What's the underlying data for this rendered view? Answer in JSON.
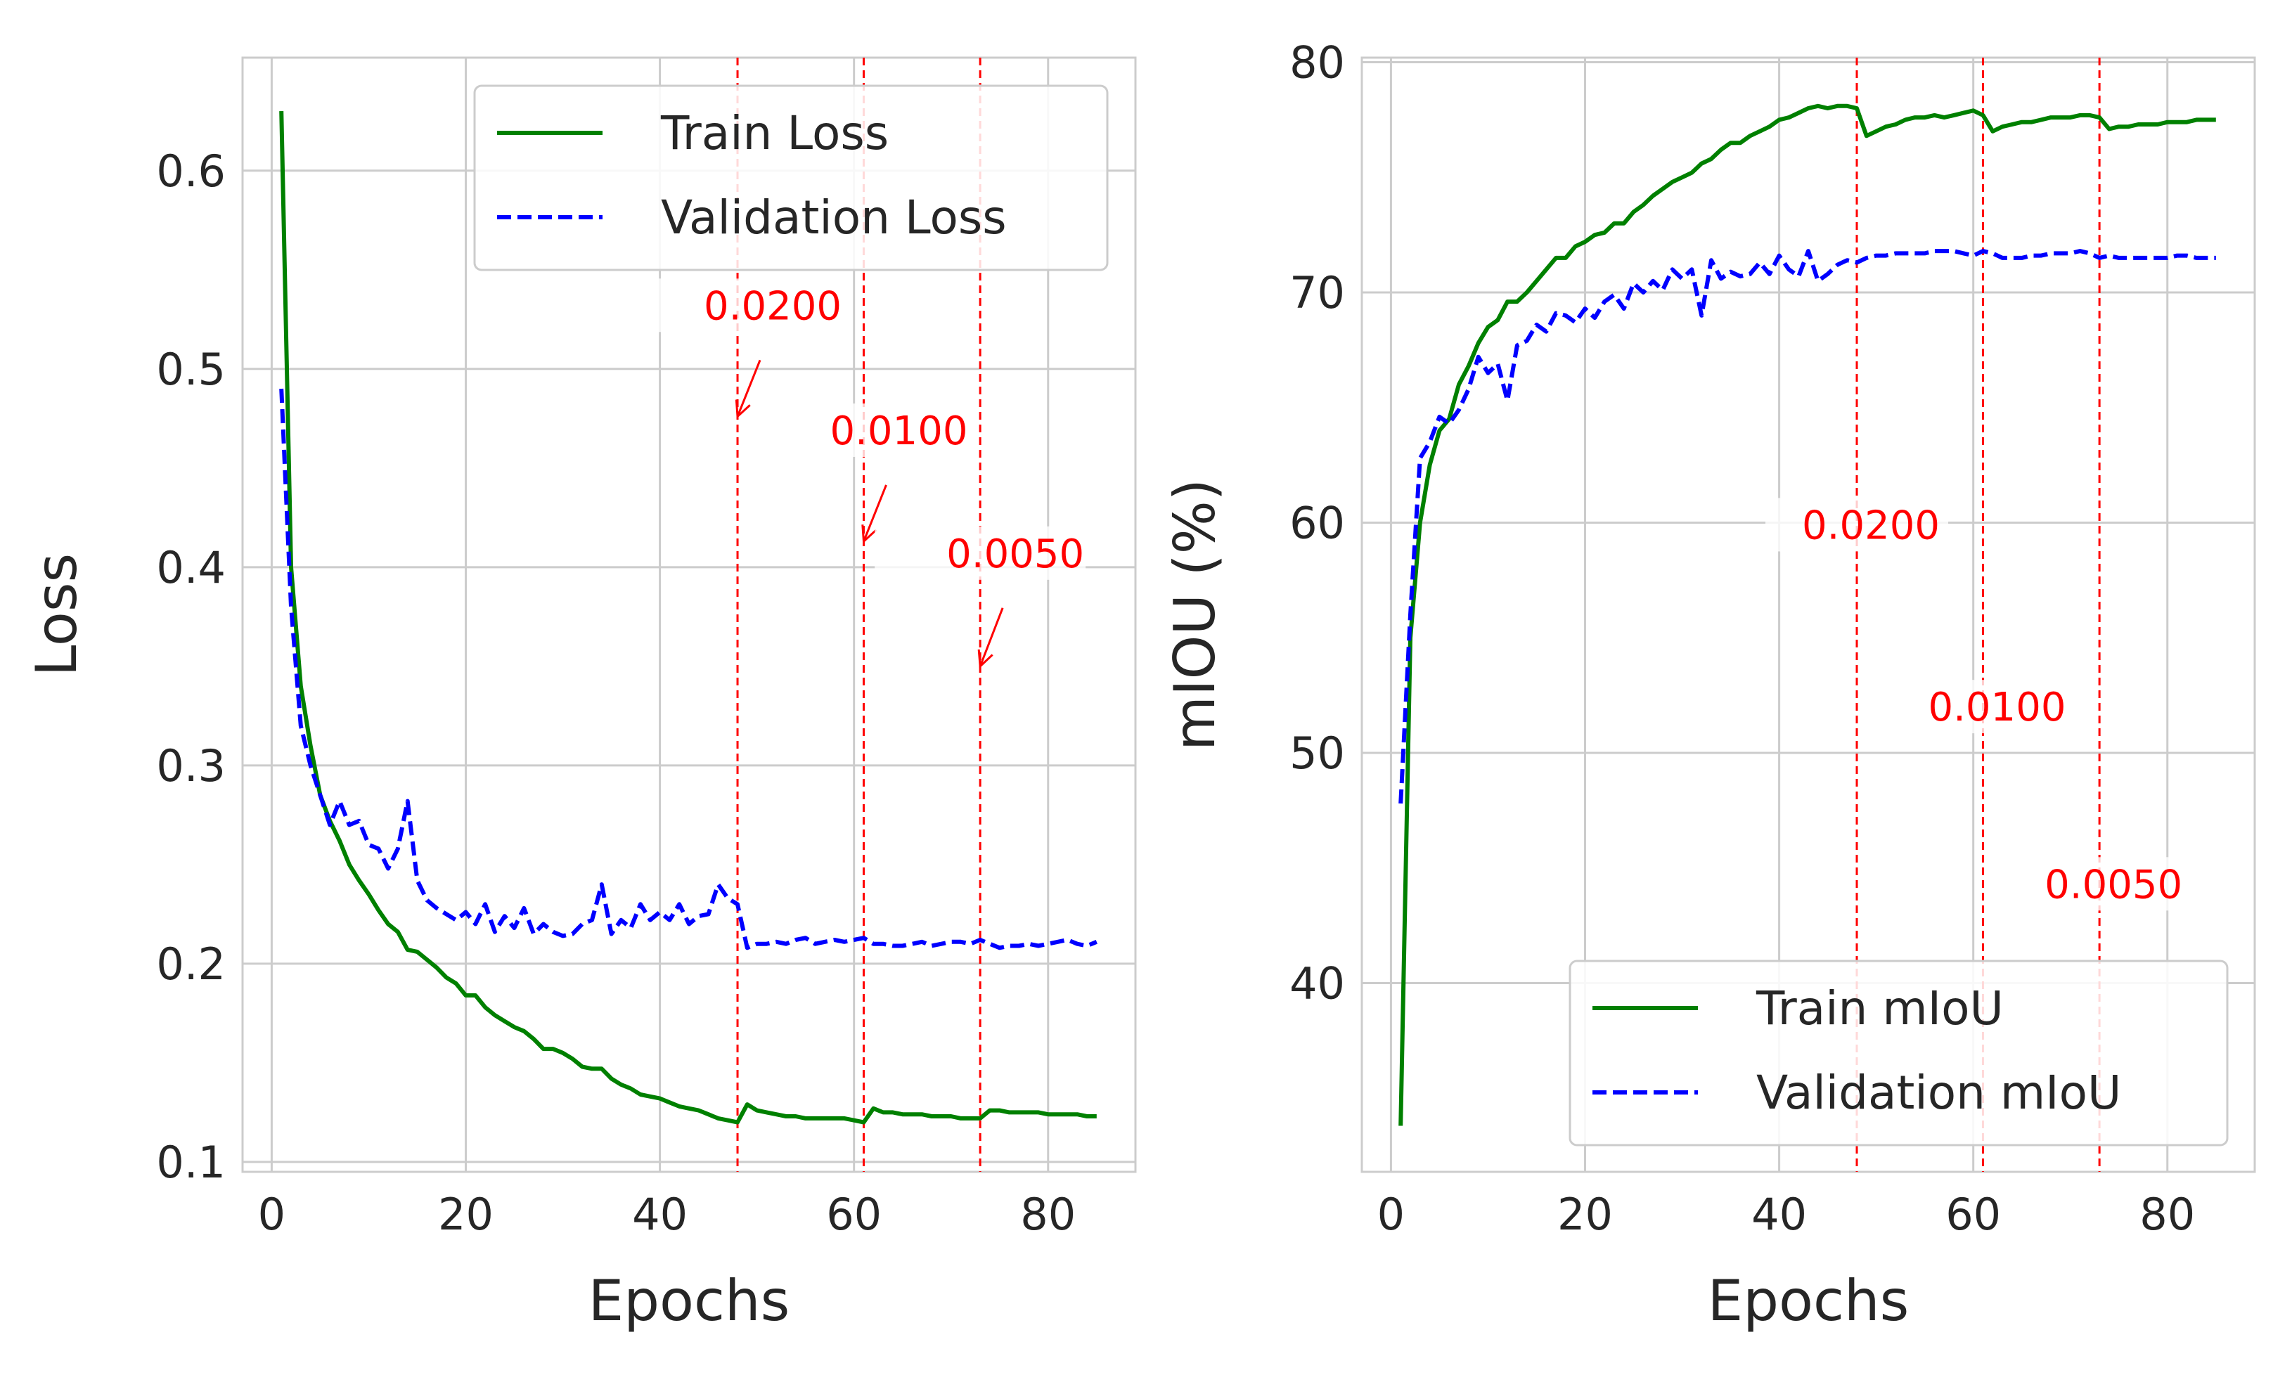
{
  "chart_data": [
    {
      "type": "line",
      "xlabel": "Epochs",
      "ylabel": "Loss",
      "xlim": [
        -3,
        89
      ],
      "ylim": [
        0.095,
        0.657
      ],
      "xticks": [
        "0",
        "20",
        "40",
        "60",
        "80"
      ],
      "yticks": [
        "0.1",
        "0.2",
        "0.3",
        "0.4",
        "0.5",
        "0.6"
      ],
      "grid": true,
      "legend_position": "upper right",
      "lr_markers": [
        {
          "epoch": 48,
          "label": "0.0200",
          "arrow_tip": 0.476,
          "label_at": 0.525
        },
        {
          "epoch": 61,
          "label": "0.0100",
          "arrow_tip": 0.413,
          "label_at": 0.462
        },
        {
          "epoch": 73,
          "label": "0.0050",
          "arrow_tip": 0.35,
          "label_at": 0.4
        }
      ],
      "series": [
        {
          "name": "Train Loss",
          "color": "#008000",
          "style": "solid",
          "x": [
            1,
            2,
            3,
            4,
            5,
            6,
            7,
            8,
            9,
            10,
            11,
            12,
            13,
            14,
            15,
            16,
            17,
            18,
            19,
            20,
            21,
            22,
            23,
            24,
            25,
            26,
            27,
            28,
            29,
            30,
            31,
            32,
            33,
            34,
            35,
            36,
            37,
            38,
            39,
            40,
            41,
            42,
            43,
            44,
            45,
            46,
            47,
            48,
            49,
            50,
            51,
            52,
            53,
            54,
            55,
            56,
            57,
            58,
            59,
            60,
            61,
            62,
            63,
            64,
            65,
            66,
            67,
            68,
            69,
            70,
            71,
            72,
            73,
            74,
            75,
            76,
            77,
            78,
            79,
            80,
            81,
            82,
            83,
            84,
            85
          ],
          "y": [
            0.63,
            0.4,
            0.34,
            0.31,
            0.285,
            0.272,
            0.262,
            0.25,
            0.242,
            0.235,
            0.227,
            0.22,
            0.216,
            0.207,
            0.206,
            0.202,
            0.198,
            0.193,
            0.19,
            0.184,
            0.184,
            0.178,
            0.174,
            0.171,
            0.168,
            0.166,
            0.162,
            0.157,
            0.157,
            0.155,
            0.152,
            0.148,
            0.147,
            0.147,
            0.142,
            0.139,
            0.137,
            0.134,
            0.133,
            0.132,
            0.13,
            0.128,
            0.127,
            0.126,
            0.124,
            0.122,
            0.121,
            0.12,
            0.129,
            0.126,
            0.125,
            0.124,
            0.123,
            0.123,
            0.122,
            0.122,
            0.122,
            0.122,
            0.122,
            0.121,
            0.12,
            0.127,
            0.125,
            0.125,
            0.124,
            0.124,
            0.124,
            0.123,
            0.123,
            0.123,
            0.122,
            0.122,
            0.122,
            0.126,
            0.126,
            0.125,
            0.125,
            0.125,
            0.125,
            0.124,
            0.124,
            0.124,
            0.124,
            0.123,
            0.123
          ]
        },
        {
          "name": "Validation Loss",
          "color": "#0000ff",
          "style": "dashed",
          "x": [
            1,
            2,
            3,
            4,
            5,
            6,
            7,
            8,
            9,
            10,
            11,
            12,
            13,
            14,
            15,
            16,
            17,
            18,
            19,
            20,
            21,
            22,
            23,
            24,
            25,
            26,
            27,
            28,
            29,
            30,
            31,
            32,
            33,
            34,
            35,
            36,
            37,
            38,
            39,
            40,
            41,
            42,
            43,
            44,
            45,
            46,
            47,
            48,
            49,
            50,
            51,
            52,
            53,
            54,
            55,
            56,
            57,
            58,
            59,
            60,
            61,
            62,
            63,
            64,
            65,
            66,
            67,
            68,
            69,
            70,
            71,
            72,
            73,
            74,
            75,
            76,
            77,
            78,
            79,
            80,
            81,
            82,
            83,
            84,
            85
          ],
          "y": [
            0.49,
            0.38,
            0.32,
            0.3,
            0.285,
            0.27,
            0.282,
            0.27,
            0.272,
            0.26,
            0.258,
            0.248,
            0.258,
            0.282,
            0.242,
            0.232,
            0.228,
            0.225,
            0.222,
            0.226,
            0.22,
            0.23,
            0.216,
            0.224,
            0.218,
            0.228,
            0.215,
            0.22,
            0.216,
            0.214,
            0.215,
            0.22,
            0.222,
            0.24,
            0.215,
            0.222,
            0.218,
            0.23,
            0.222,
            0.226,
            0.222,
            0.23,
            0.22,
            0.224,
            0.225,
            0.24,
            0.233,
            0.23,
            0.208,
            0.21,
            0.21,
            0.211,
            0.21,
            0.212,
            0.213,
            0.21,
            0.211,
            0.212,
            0.211,
            0.212,
            0.213,
            0.21,
            0.21,
            0.209,
            0.209,
            0.21,
            0.211,
            0.209,
            0.21,
            0.211,
            0.211,
            0.21,
            0.212,
            0.21,
            0.208,
            0.209,
            0.209,
            0.21,
            0.209,
            0.21,
            0.211,
            0.212,
            0.21,
            0.209,
            0.211
          ]
        }
      ]
    },
    {
      "type": "line",
      "xlabel": "Epochs",
      "ylabel": "mIOU (%)",
      "xlim": [
        -3,
        89
      ],
      "ylim": [
        31.8,
        80.2
      ],
      "xticks": [
        "0",
        "20",
        "40",
        "60",
        "80"
      ],
      "yticks": [
        "40",
        "50",
        "60",
        "70",
        "80"
      ],
      "grid": true,
      "legend_position": "lower right",
      "lr_markers": [
        {
          "epoch": 48,
          "label": "0.0200",
          "label_at": 59.3
        },
        {
          "epoch": 61,
          "label": "0.0100",
          "label_at": 51.4
        },
        {
          "epoch": 73,
          "label": "0.0050",
          "label_at": 43.7
        }
      ],
      "series": [
        {
          "name": "Train mIoU",
          "color": "#008000",
          "style": "solid",
          "x": [
            1,
            2,
            3,
            4,
            5,
            6,
            7,
            8,
            9,
            10,
            11,
            12,
            13,
            14,
            15,
            16,
            17,
            18,
            19,
            20,
            21,
            22,
            23,
            24,
            25,
            26,
            27,
            28,
            29,
            30,
            31,
            32,
            33,
            34,
            35,
            36,
            37,
            38,
            39,
            40,
            41,
            42,
            43,
            44,
            45,
            46,
            47,
            48,
            49,
            50,
            51,
            52,
            53,
            54,
            55,
            56,
            57,
            58,
            59,
            60,
            61,
            62,
            63,
            64,
            65,
            66,
            67,
            68,
            69,
            70,
            71,
            72,
            73,
            74,
            75,
            76,
            77,
            78,
            79,
            80,
            81,
            82,
            83,
            84,
            85
          ],
          "y": [
            33.8,
            55.0,
            60.0,
            62.5,
            64.0,
            64.5,
            66.0,
            66.8,
            67.8,
            68.5,
            68.8,
            69.6,
            69.6,
            70.0,
            70.5,
            71.0,
            71.5,
            71.5,
            72.0,
            72.2,
            72.5,
            72.6,
            73.0,
            73.0,
            73.5,
            73.8,
            74.2,
            74.5,
            74.8,
            75.0,
            75.2,
            75.6,
            75.8,
            76.2,
            76.5,
            76.5,
            76.8,
            77.0,
            77.2,
            77.5,
            77.6,
            77.8,
            78.0,
            78.1,
            78.0,
            78.1,
            78.1,
            78.0,
            76.8,
            77.0,
            77.2,
            77.3,
            77.5,
            77.6,
            77.6,
            77.7,
            77.6,
            77.7,
            77.8,
            77.9,
            77.7,
            77.0,
            77.2,
            77.3,
            77.4,
            77.4,
            77.5,
            77.6,
            77.6,
            77.6,
            77.7,
            77.7,
            77.6,
            77.1,
            77.2,
            77.2,
            77.3,
            77.3,
            77.3,
            77.4,
            77.4,
            77.4,
            77.5,
            77.5,
            77.5
          ]
        },
        {
          "name": "Validation mIoU",
          "color": "#0000ff",
          "style": "dashed",
          "x": [
            1,
            2,
            3,
            4,
            5,
            6,
            7,
            8,
            9,
            10,
            11,
            12,
            13,
            14,
            15,
            16,
            17,
            18,
            19,
            20,
            21,
            22,
            23,
            24,
            25,
            26,
            27,
            28,
            29,
            30,
            31,
            32,
            33,
            34,
            35,
            36,
            37,
            38,
            39,
            40,
            41,
            42,
            43,
            44,
            45,
            46,
            47,
            48,
            49,
            50,
            51,
            52,
            53,
            54,
            55,
            56,
            57,
            58,
            59,
            60,
            61,
            62,
            63,
            64,
            65,
            66,
            67,
            68,
            69,
            70,
            71,
            72,
            73,
            74,
            75,
            76,
            77,
            78,
            79,
            80,
            81,
            82,
            83,
            84,
            85
          ],
          "y": [
            47.8,
            56.0,
            62.8,
            63.5,
            64.6,
            64.3,
            64.9,
            65.8,
            67.2,
            66.5,
            66.9,
            65.3,
            67.7,
            67.9,
            68.6,
            68.3,
            69.1,
            69.0,
            68.7,
            69.3,
            68.9,
            69.6,
            69.9,
            69.3,
            70.4,
            70.0,
            70.5,
            70.1,
            71.0,
            70.6,
            71.0,
            69.0,
            71.4,
            70.6,
            70.9,
            70.7,
            70.8,
            71.3,
            70.8,
            71.6,
            71.0,
            70.7,
            71.8,
            70.5,
            70.8,
            71.2,
            71.4,
            71.3,
            71.5,
            71.6,
            71.6,
            71.7,
            71.7,
            71.7,
            71.7,
            71.8,
            71.8,
            71.8,
            71.7,
            71.6,
            71.8,
            71.7,
            71.5,
            71.5,
            71.5,
            71.6,
            71.6,
            71.7,
            71.7,
            71.7,
            71.8,
            71.7,
            71.5,
            71.6,
            71.5,
            71.5,
            71.5,
            71.5,
            71.5,
            71.5,
            71.6,
            71.6,
            71.5,
            71.5,
            71.5
          ]
        }
      ]
    }
  ]
}
